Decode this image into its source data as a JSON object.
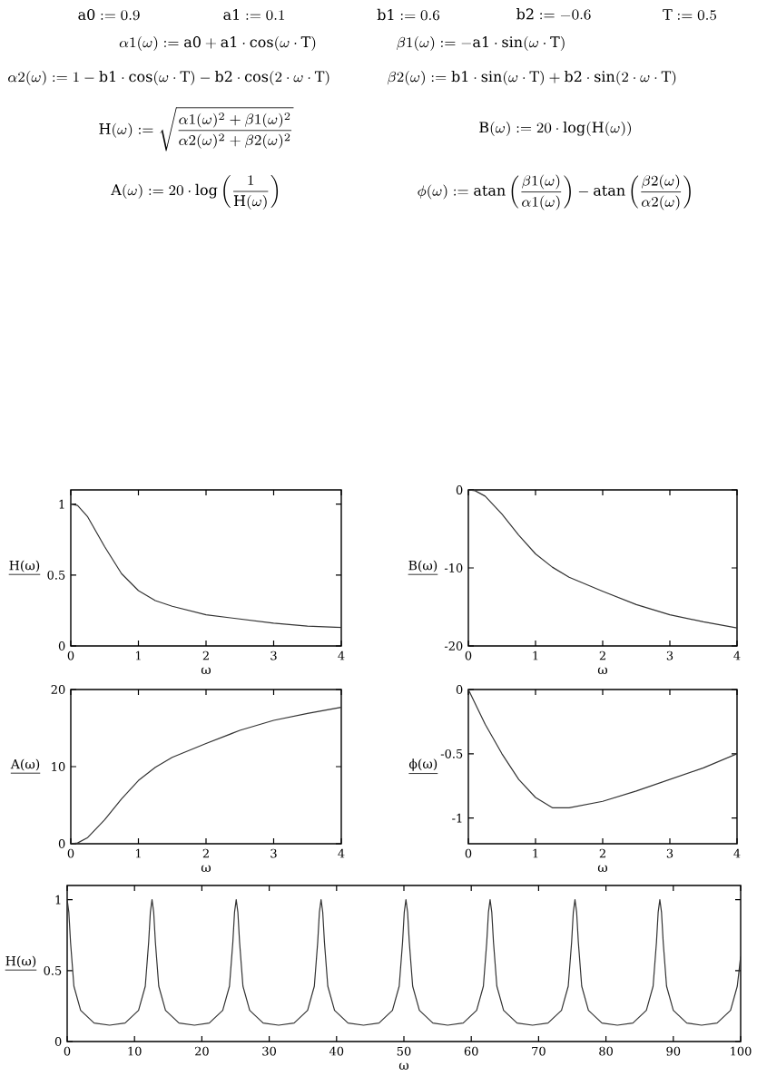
{
  "chart_data": [
    {
      "type": "other",
      "annotations": [
        "\\mathrm{a0} := 0.9",
        "\\mathrm{a1} := 0.1",
        "\\mathrm{b1} := 0.6",
        "\\mathrm{b2} := -0.6",
        "\\mathrm{T} := 0.5",
        "\\alpha 1(\\omega) := \\mathrm{a0} + \\mathrm{a1}\\cdot\\cos(\\omega\\cdot\\mathrm{T})",
        "\\beta 1(\\omega) := -\\mathrm{a1}\\cdot\\sin(\\omega\\cdot\\mathrm{T})",
        "\\alpha 2(\\omega) := 1 - \\mathrm{b1}\\cdot\\cos(\\omega\\cdot\\mathrm{T}) - \\mathrm{b2}\\cdot\\cos(2\\cdot\\omega\\cdot\\mathrm{T})",
        "\\beta 2(\\omega) := \\mathrm{b1}\\cdot\\sin(\\omega\\cdot\\mathrm{T}) + \\mathrm{b2}\\cdot\\sin(2\\cdot\\omega\\cdot\\mathrm{T})",
        "\\mathrm{H}(\\omega) := \\sqrt{\\frac{\\alpha 1(\\omega)^2 + \\beta 1(\\omega)^2}{\\alpha 2(\\omega)^2 + \\beta 2(\\omega)^2}}",
        "\\mathrm{B}(\\omega) := 20\\cdot\\log(\\mathrm{H}(\\omega))",
        "\\mathrm{A}(\\omega) := 20\\cdot\\log\\left(\\frac{1}{\\mathrm{H}(\\omega)}\\right)",
        "\\phi(\\omega) := \\mathrm{atan}\\left(\\frac{\\beta 1(\\omega)}{\\alpha 1(\\omega)}\\right) - \\mathrm{atan}\\left(\\frac{\\beta 2(\\omega)}{\\alpha 2(\\omega)}\\right)"
      ]
    },
    {
      "type": "line",
      "xlabel": "ω",
      "ylabel": "H(ω)",
      "color": "#333333",
      "xlim": [
        0,
        4
      ],
      "ylim": [
        0,
        1.1
      ],
      "xticks": [
        0,
        1,
        2,
        3,
        4
      ],
      "yticks": [
        0,
        0.5,
        1
      ],
      "x": [
        0,
        0.1,
        0.25,
        0.5,
        0.75,
        1,
        1.25,
        1.5,
        2,
        2.5,
        3,
        3.5,
        4
      ],
      "values": [
        1,
        0.99,
        0.91,
        0.7,
        0.51,
        0.39,
        0.32,
        0.28,
        0.22,
        0.19,
        0.16,
        0.14,
        0.13
      ]
    },
    {
      "type": "line",
      "xlabel": "ω",
      "ylabel": "B(ω)",
      "color": "#333333",
      "xlim": [
        0,
        4
      ],
      "ylim": [
        -20,
        0
      ],
      "xticks": [
        0,
        1,
        2,
        3,
        4
      ],
      "yticks": [
        -20,
        -10,
        0
      ],
      "x": [
        0,
        0.1,
        0.25,
        0.5,
        0.75,
        1,
        1.25,
        1.5,
        2,
        2.5,
        3,
        3.5,
        4
      ],
      "values": [
        0,
        -0.1,
        -0.8,
        -3.1,
        -5.8,
        -8.2,
        -9.9,
        -11.2,
        -13.0,
        -14.7,
        -16.0,
        -16.9,
        -17.7
      ]
    },
    {
      "type": "line",
      "xlabel": "ω",
      "ylabel": "A(ω)",
      "color": "#333333",
      "xlim": [
        0,
        4
      ],
      "ylim": [
        0,
        20
      ],
      "xticks": [
        0,
        1,
        2,
        3,
        4
      ],
      "yticks": [
        0,
        10,
        20
      ],
      "x": [
        0,
        0.1,
        0.25,
        0.5,
        0.75,
        1,
        1.25,
        1.5,
        2,
        2.5,
        3,
        3.5,
        4
      ],
      "values": [
        0,
        0.1,
        0.8,
        3.1,
        5.8,
        8.2,
        9.9,
        11.2,
        13.0,
        14.7,
        16.0,
        16.9,
        17.7
      ]
    },
    {
      "type": "line",
      "xlabel": "ω",
      "ylabel": "ϕ(ω)",
      "color": "#333333",
      "xlim": [
        0,
        4
      ],
      "ylim": [
        -1.2,
        0
      ],
      "xticks": [
        0,
        1,
        2,
        3,
        4
      ],
      "yticks": [
        -1,
        -0.5,
        0
      ],
      "x": [
        0,
        0.25,
        0.5,
        0.75,
        1,
        1.25,
        1.5,
        2,
        2.5,
        3,
        3.5,
        4
      ],
      "values": [
        0,
        -0.27,
        -0.5,
        -0.7,
        -0.84,
        -0.92,
        -0.92,
        -0.87,
        -0.79,
        -0.7,
        -0.61,
        -0.5
      ]
    },
    {
      "type": "line",
      "xlabel": "ω",
      "ylabel": "H(ω)",
      "color": "#333333",
      "xlim": [
        0,
        100
      ],
      "ylim": [
        0,
        1.1
      ],
      "xticks": [
        0,
        10,
        20,
        30,
        40,
        50,
        60,
        70,
        80,
        90,
        100
      ],
      "yticks": [
        0,
        0.5,
        1
      ],
      "x": [
        0,
        0.25,
        0.5,
        1,
        2,
        4,
        6.3,
        8.6,
        10.6,
        11.6,
        12.1,
        12.35,
        12.6,
        12.85,
        13.1,
        13.6,
        14.6,
        16.6,
        18.9,
        21.1,
        23.1,
        24.1,
        24.6,
        24.85,
        25.1,
        25.35,
        25.6,
        26.1,
        27.1,
        29.1,
        31.4,
        33.7,
        35.7,
        36.7,
        37.2,
        37.45,
        37.7,
        37.95,
        38.2,
        38.7,
        39.7,
        41.7,
        44.0,
        46.3,
        48.3,
        49.3,
        49.8,
        50.05,
        50.3,
        50.55,
        50.8,
        51.3,
        52.3,
        54.3,
        56.5,
        58.8,
        60.8,
        61.8,
        62.3,
        62.55,
        62.8,
        63.05,
        63.3,
        63.8,
        64.8,
        66.8,
        69.1,
        71.4,
        73.4,
        74.4,
        74.9,
        75.15,
        75.4,
        75.65,
        75.9,
        76.4,
        77.4,
        79.4,
        81.7,
        84.0,
        86.0,
        87.0,
        87.5,
        87.75,
        88.0,
        88.25,
        88.5,
        89.0,
        90.0,
        92.0,
        94.2,
        96.5,
        98.5,
        99.5,
        100
      ],
      "values": [
        1,
        0.91,
        0.7,
        0.39,
        0.22,
        0.13,
        0.115,
        0.13,
        0.22,
        0.39,
        0.7,
        0.91,
        1,
        0.91,
        0.7,
        0.39,
        0.22,
        0.13,
        0.115,
        0.13,
        0.22,
        0.39,
        0.7,
        0.91,
        1,
        0.91,
        0.7,
        0.39,
        0.22,
        0.13,
        0.115,
        0.13,
        0.22,
        0.39,
        0.7,
        0.91,
        1,
        0.91,
        0.7,
        0.39,
        0.22,
        0.13,
        0.115,
        0.13,
        0.22,
        0.39,
        0.7,
        0.91,
        1,
        0.91,
        0.7,
        0.39,
        0.22,
        0.13,
        0.115,
        0.13,
        0.22,
        0.39,
        0.7,
        0.91,
        1,
        0.91,
        0.7,
        0.39,
        0.22,
        0.13,
        0.115,
        0.13,
        0.22,
        0.39,
        0.7,
        0.91,
        1,
        0.91,
        0.7,
        0.39,
        0.22,
        0.13,
        0.115,
        0.13,
        0.22,
        0.39,
        0.7,
        0.91,
        1,
        0.91,
        0.7,
        0.39,
        0.22,
        0.13,
        0.115,
        0.13,
        0.22,
        0.39,
        0.6
      ]
    }
  ]
}
